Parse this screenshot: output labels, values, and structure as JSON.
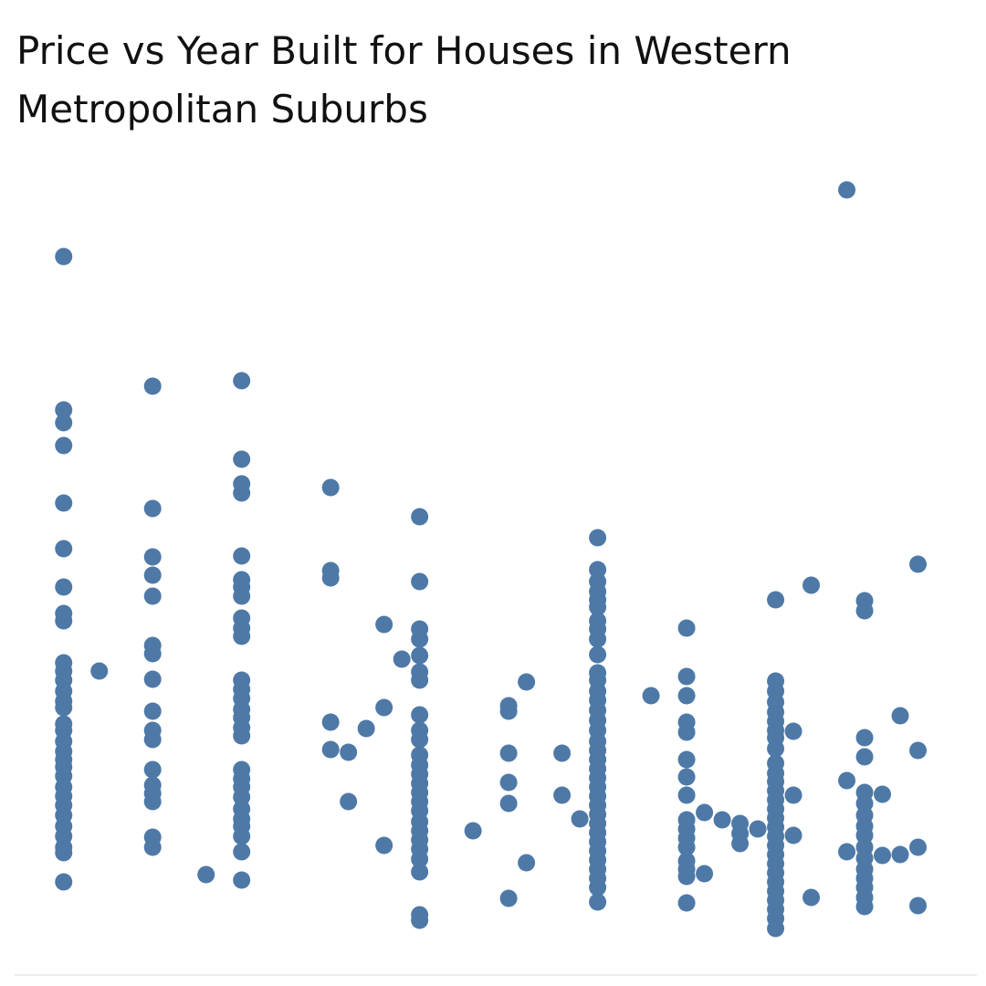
{
  "chart_data": {
    "type": "scatter",
    "title": "Price vs Year Built for Houses in Western Metropolitan Suburbs",
    "color": "#4e79a7",
    "xlim": [
      1895,
      2002
    ],
    "ylim": [
      0,
      3600000
    ],
    "x": [
      1900,
      1900,
      1900,
      1900,
      1900,
      1900,
      1900,
      1900,
      1900,
      1900,
      1900,
      1900,
      1900,
      1900,
      1900,
      1900,
      1900,
      1900,
      1900,
      1900,
      1900,
      1900,
      1900,
      1900,
      1900,
      1900,
      1900,
      1900,
      1900,
      1900,
      1900,
      1904,
      1910,
      1910,
      1910,
      1910,
      1910,
      1910,
      1910,
      1910,
      1910,
      1910,
      1910,
      1910,
      1910,
      1910,
      1910,
      1910,
      1910,
      1916,
      1920,
      1920,
      1920,
      1920,
      1920,
      1920,
      1920,
      1920,
      1920,
      1920,
      1920,
      1920,
      1920,
      1920,
      1920,
      1920,
      1920,
      1920,
      1920,
      1920,
      1920,
      1920,
      1920,
      1920,
      1920,
      1920,
      1920,
      1920,
      1930,
      1930,
      1930,
      1930,
      1930,
      1932,
      1932,
      1934,
      1936,
      1936,
      1936,
      1938,
      1940,
      1940,
      1940,
      1940,
      1940,
      1940,
      1940,
      1940,
      1940,
      1940,
      1940,
      1940,
      1940,
      1940,
      1940,
      1940,
      1940,
      1940,
      1940,
      1940,
      1940,
      1940,
      1940,
      1940,
      1940,
      1946,
      1950,
      1950,
      1950,
      1950,
      1950,
      1950,
      1952,
      1952,
      1956,
      1956,
      1958,
      1960,
      1960,
      1960,
      1960,
      1960,
      1960,
      1960,
      1960,
      1960,
      1960,
      1960,
      1960,
      1960,
      1960,
      1960,
      1960,
      1960,
      1960,
      1960,
      1960,
      1960,
      1960,
      1960,
      1960,
      1960,
      1960,
      1960,
      1960,
      1960,
      1960,
      1960,
      1960,
      1960,
      1960,
      1960,
      1966,
      1970,
      1970,
      1970,
      1970,
      1970,
      1970,
      1970,
      1970,
      1970,
      1970,
      1970,
      1970,
      1970,
      1970,
      1970,
      1970,
      1972,
      1972,
      1974,
      1976,
      1976,
      1976,
      1978,
      1980,
      1980,
      1980,
      1980,
      1980,
      1980,
      1980,
      1980,
      1980,
      1980,
      1980,
      1980,
      1980,
      1980,
      1980,
      1980,
      1980,
      1980,
      1980,
      1980,
      1980,
      1980,
      1980,
      1980,
      1980,
      1980,
      1980,
      1980,
      1982,
      1982,
      1982,
      1984,
      1984,
      1988,
      1988,
      1988,
      1990,
      1990,
      1990,
      1990,
      1990,
      1990,
      1990,
      1990,
      1990,
      1990,
      1990,
      1990,
      1990,
      1990,
      1990,
      1990,
      1992,
      1992,
      1994,
      1994,
      1996,
      1996,
      1996,
      1996
    ],
    "values": [
      3136000,
      2464000,
      2408000,
      2308000,
      2056000,
      1856000,
      1688000,
      1572000,
      1540000,
      1356000,
      1320000,
      1280000,
      1232000,
      1188000,
      1160000,
      1088000,
      1060000,
      1012000,
      968000,
      932000,
      900000,
      860000,
      812000,
      772000,
      732000,
      688000,
      640000,
      596000,
      548000,
      524000,
      396000,
      1320000,
      2568000,
      2032000,
      1820000,
      1740000,
      1648000,
      1432000,
      1396000,
      1284000,
      1144000,
      1060000,
      1020000,
      888000,
      820000,
      784000,
      748000,
      592000,
      548000,
      428000,
      2592000,
      2248000,
      2140000,
      2100000,
      1824000,
      1720000,
      1688000,
      1648000,
      1552000,
      1508000,
      1472000,
      1280000,
      1240000,
      1200000,
      1152000,
      1116000,
      1072000,
      1036000,
      888000,
      848000,
      812000,
      768000,
      716000,
      672000,
      640000,
      596000,
      528000,
      404000,
      2124000,
      1760000,
      1728000,
      1096000,
      976000,
      964000,
      748000,
      1068000,
      1524000,
      1160000,
      556000,
      1372000,
      1996000,
      1712000,
      1504000,
      1460000,
      1388000,
      1316000,
      1280000,
      1128000,
      1060000,
      1020000,
      952000,
      908000,
      868000,
      828000,
      788000,
      748000,
      708000,
      660000,
      620000,
      580000,
      540000,
      496000,
      440000,
      252000,
      228000,
      620000,
      1168000,
      1144000,
      960000,
      832000,
      740000,
      324000,
      1272000,
      480000,
      960000,
      776000,
      672000,
      1904000,
      1764000,
      1712000,
      1668000,
      1632000,
      1600000,
      1540000,
      1504000,
      1460000,
      1392000,
      1312000,
      1280000,
      1232000,
      1192000,
      1148000,
      1104000,
      1060000,
      1012000,
      972000,
      932000,
      892000,
      852000,
      812000,
      772000,
      732000,
      692000,
      652000,
      612000,
      572000,
      532000,
      492000,
      452000,
      412000,
      372000,
      308000,
      1212000,
      1508000,
      1296000,
      1212000,
      1096000,
      1052000,
      932000,
      856000,
      776000,
      668000,
      628000,
      588000,
      548000,
      488000,
      452000,
      420000,
      304000,
      700000,
      432000,
      668000,
      652000,
      608000,
      564000,
      628000,
      1632000,
      1276000,
      1232000,
      1184000,
      1140000,
      1100000,
      1060000,
      1028000,
      980000,
      916000,
      872000,
      836000,
      796000,
      756000,
      716000,
      676000,
      636000,
      596000,
      556000,
      516000,
      476000,
      436000,
      396000,
      356000,
      316000,
      276000,
      236000,
      192000,
      1056000,
      776000,
      600000,
      1696000,
      328000,
      3428000,
      840000,
      528000,
      1628000,
      1584000,
      1028000,
      944000,
      788000,
      740000,
      688000,
      640000,
      600000,
      548000,
      500000,
      452000,
      412000,
      372000,
      328000,
      288000,
      780000,
      512000,
      1124000,
      516000,
      1788000,
      972000,
      548000,
      292000
    ]
  }
}
